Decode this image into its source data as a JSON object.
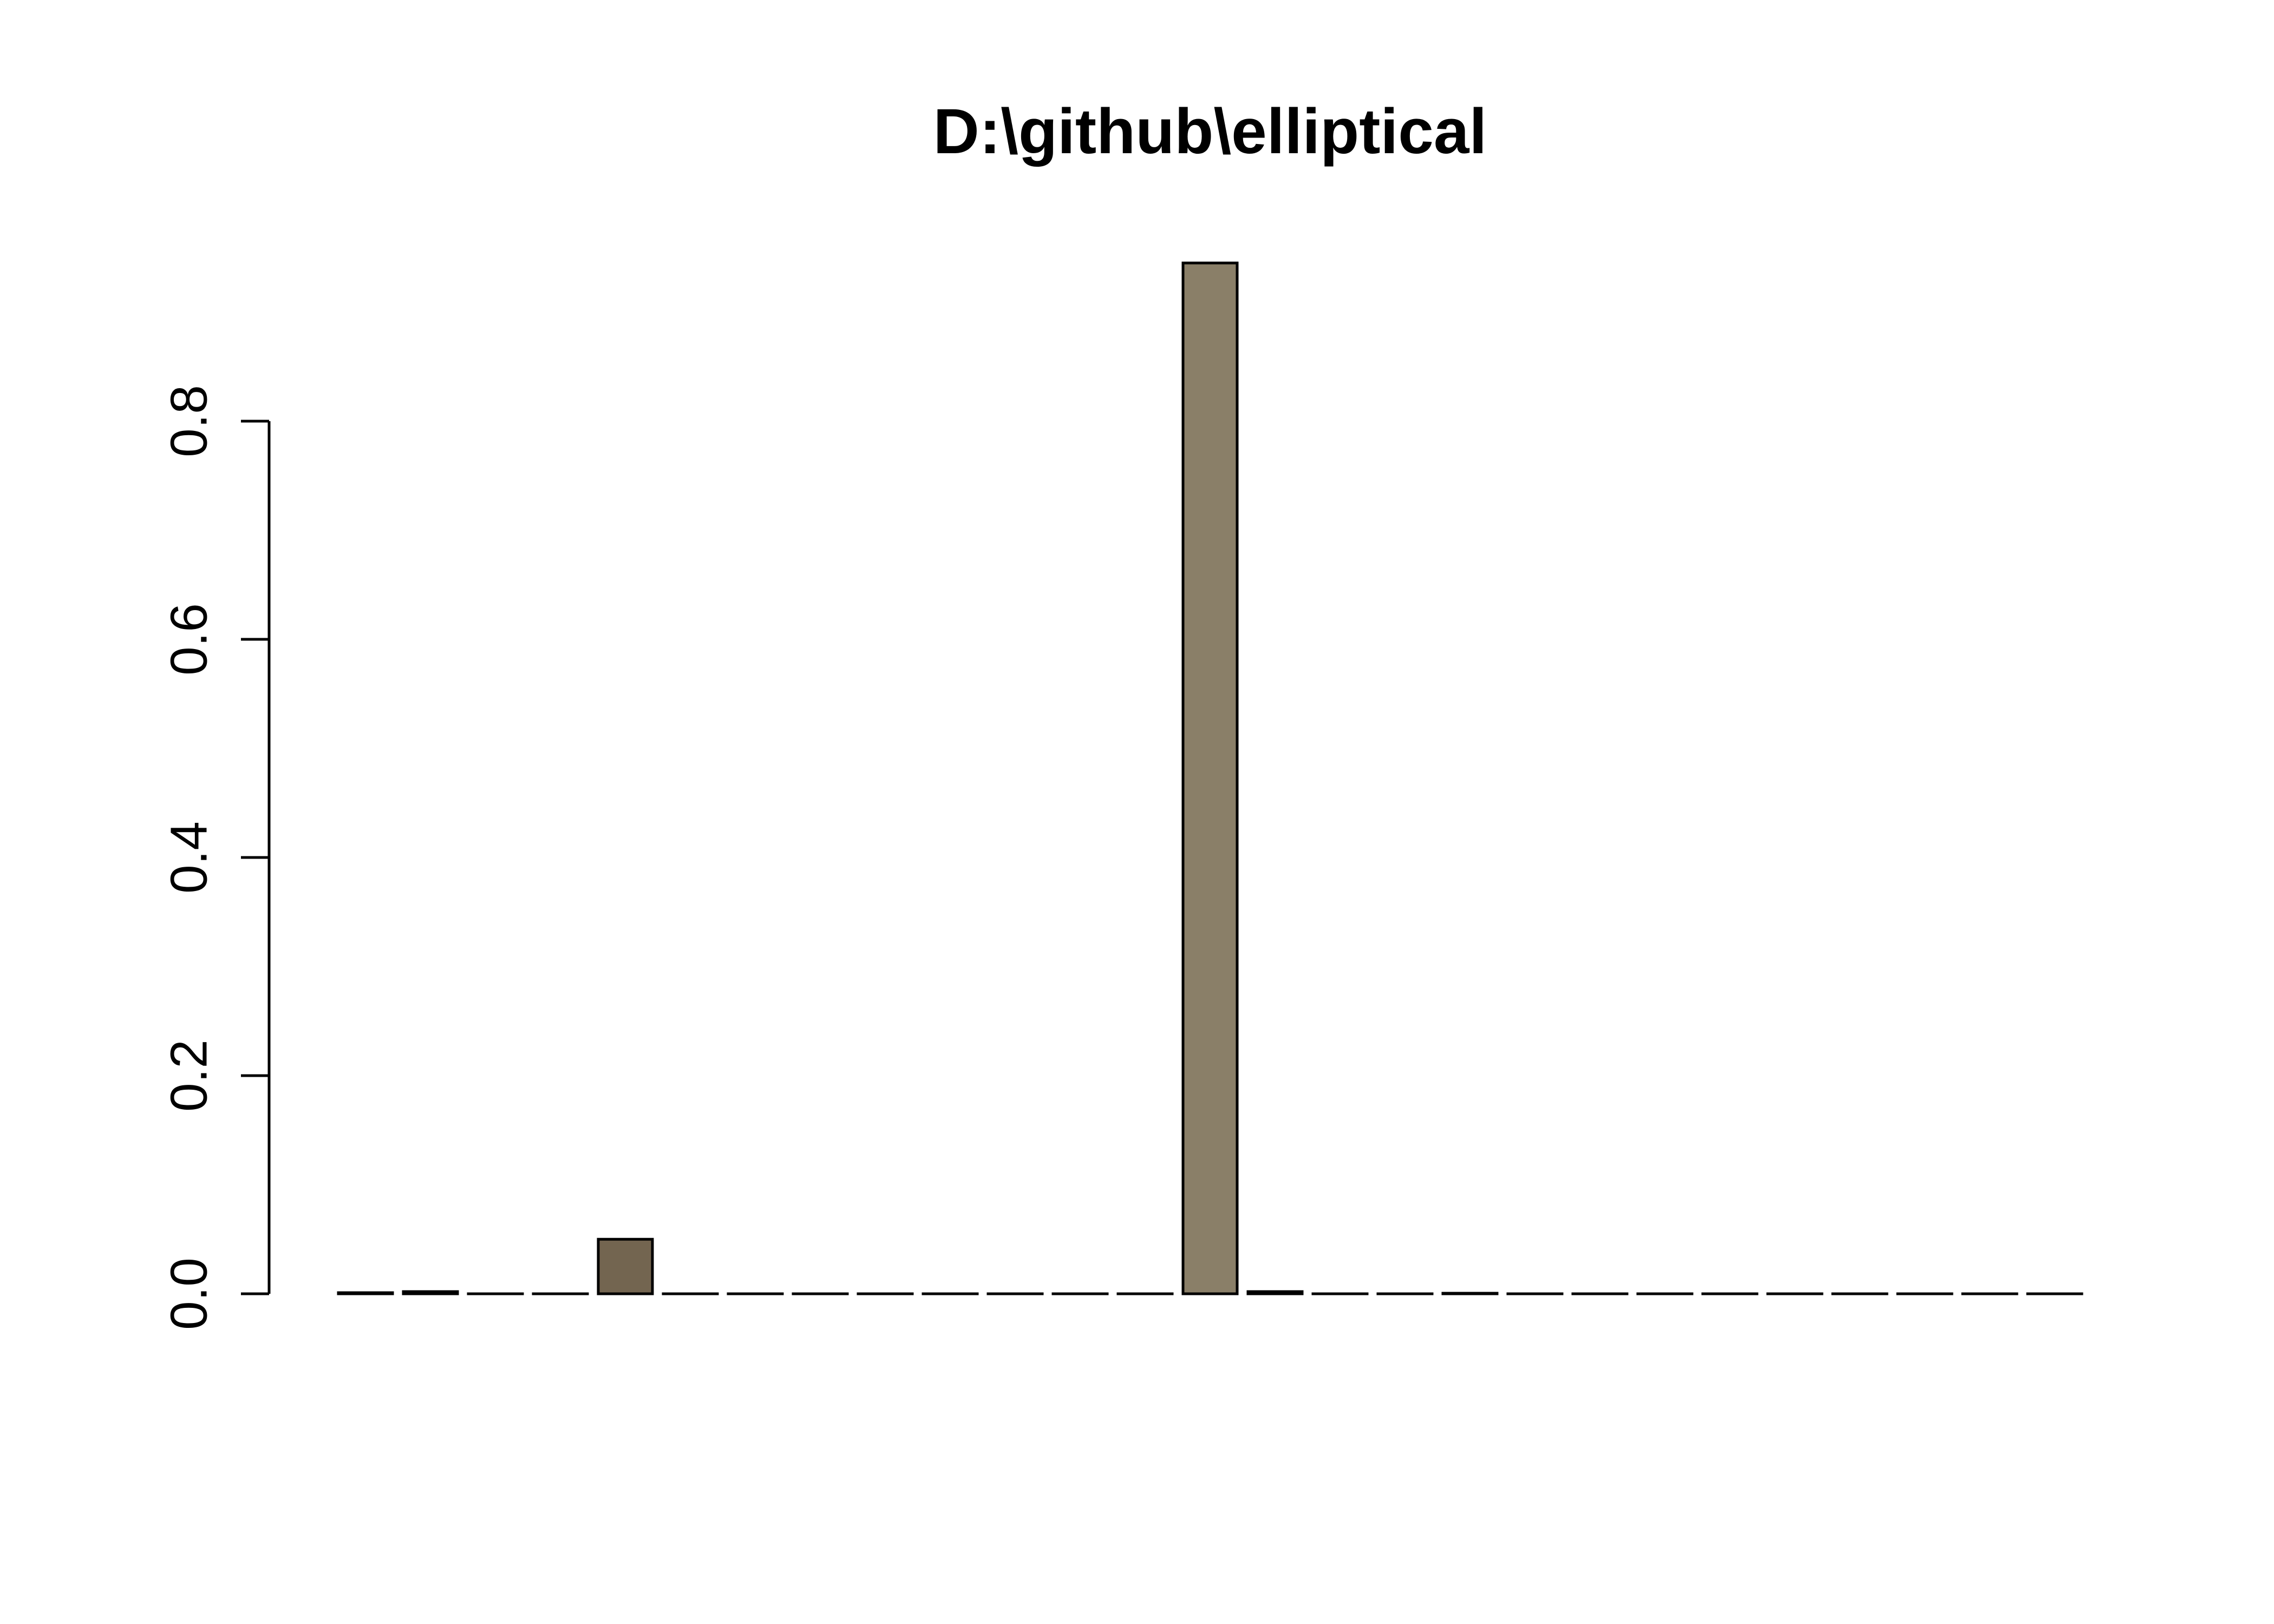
{
  "chart_data": {
    "type": "bar",
    "title": "D:\\github\\elliptical",
    "xlabel": "",
    "ylabel": "",
    "ylim": [
      0,
      0.95
    ],
    "yticks": [
      0.0,
      0.2,
      0.4,
      0.6,
      0.8
    ],
    "ytick_labels": [
      "0.0",
      "0.2",
      "0.4",
      "0.6",
      "0.8"
    ],
    "grid": false,
    "legend": "none",
    "bar_count": 27,
    "values": [
      0.001,
      0.002,
      0,
      0,
      0.05,
      0,
      0,
      0,
      0,
      0,
      0,
      0,
      0,
      0.945,
      0.002,
      0,
      0,
      0.0005,
      0,
      0,
      0,
      0,
      0,
      0,
      0,
      0,
      0
    ],
    "colors": [
      "#7a6a55",
      "#7a6a55",
      "#7a6a55",
      "#7a6a55",
      "#736550",
      "#7a6a55",
      "#7a6a55",
      "#7a6a55",
      "#7a6a55",
      "#7a6a55",
      "#7a6a55",
      "#7a6a55",
      "#7a6a55",
      "#8a7f68",
      "#7a6a55",
      "#7a6a55",
      "#7a6a55",
      "#7a6a55",
      "#7a6a55",
      "#7a6a55",
      "#7a6a55",
      "#7a6a55",
      "#7a6a55",
      "#7a6a55",
      "#7a6a55",
      "#7a6a55",
      "#7a6a55"
    ]
  }
}
